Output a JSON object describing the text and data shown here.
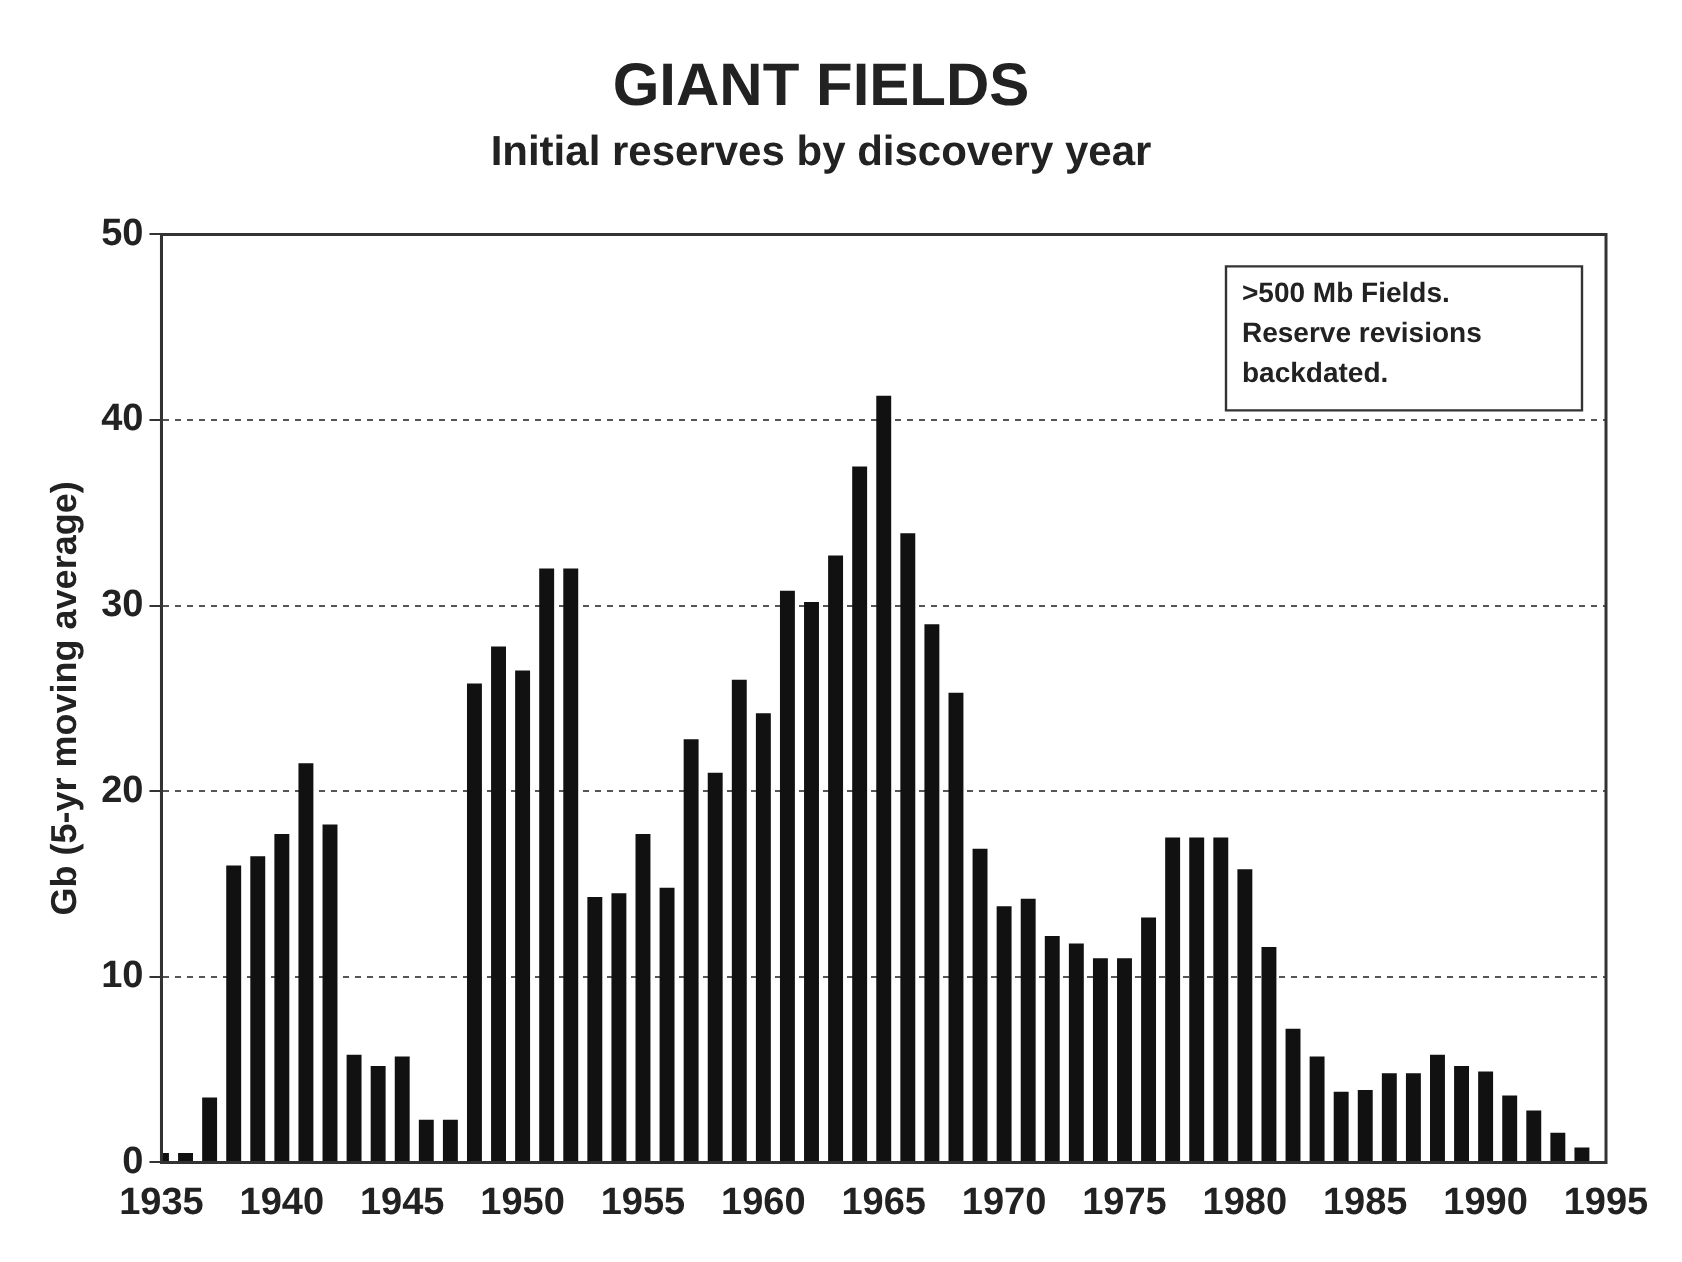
{
  "chart_data": {
    "type": "bar",
    "title": "GIANT FIELDS",
    "subtitle": "Initial reserves by discovery year",
    "ylabel": "Gb (5-yr moving average)",
    "x": [
      1935,
      1936,
      1937,
      1938,
      1939,
      1940,
      1941,
      1942,
      1943,
      1944,
      1945,
      1946,
      1947,
      1948,
      1949,
      1950,
      1951,
      1952,
      1953,
      1954,
      1955,
      1956,
      1957,
      1958,
      1959,
      1960,
      1961,
      1962,
      1963,
      1964,
      1965,
      1966,
      1967,
      1968,
      1969,
      1970,
      1971,
      1972,
      1973,
      1974,
      1975,
      1976,
      1977,
      1978,
      1979,
      1980,
      1981,
      1982,
      1983,
      1984,
      1985,
      1986,
      1987,
      1988,
      1989,
      1990,
      1991,
      1992,
      1993,
      1994
    ],
    "values": [
      0.5,
      0.5,
      3.5,
      16,
      16.5,
      17.7,
      21.5,
      18.2,
      5.8,
      5.2,
      5.7,
      2.3,
      2.3,
      25.8,
      27.8,
      26.5,
      32,
      32,
      14.3,
      14.5,
      17.7,
      14.8,
      22.8,
      21,
      26,
      24.2,
      30.8,
      30.2,
      32.7,
      37.5,
      41.3,
      33.9,
      29,
      25.3,
      16.9,
      13.8,
      14.2,
      12.2,
      11.8,
      11,
      11,
      13.2,
      17.5,
      17.5,
      17.5,
      15.8,
      11.6,
      7.2,
      5.7,
      3.8,
      3.9,
      4.8,
      4.8,
      5.8,
      5.2,
      4.9,
      3.6,
      2.8,
      1.6,
      0.8
    ],
    "color": "#111111",
    "xlim": [
      1935,
      1995
    ],
    "xticks": [
      1935,
      1940,
      1945,
      1950,
      1955,
      1960,
      1965,
      1970,
      1975,
      1980,
      1985,
      1990,
      1995
    ],
    "ylim": [
      0,
      50
    ],
    "yticks": [
      0,
      10,
      20,
      30,
      40,
      50
    ],
    "grid": "y",
    "legend": false,
    "annotations": [
      ">500 Mb Fields. Reserve revisions backdated."
    ]
  }
}
